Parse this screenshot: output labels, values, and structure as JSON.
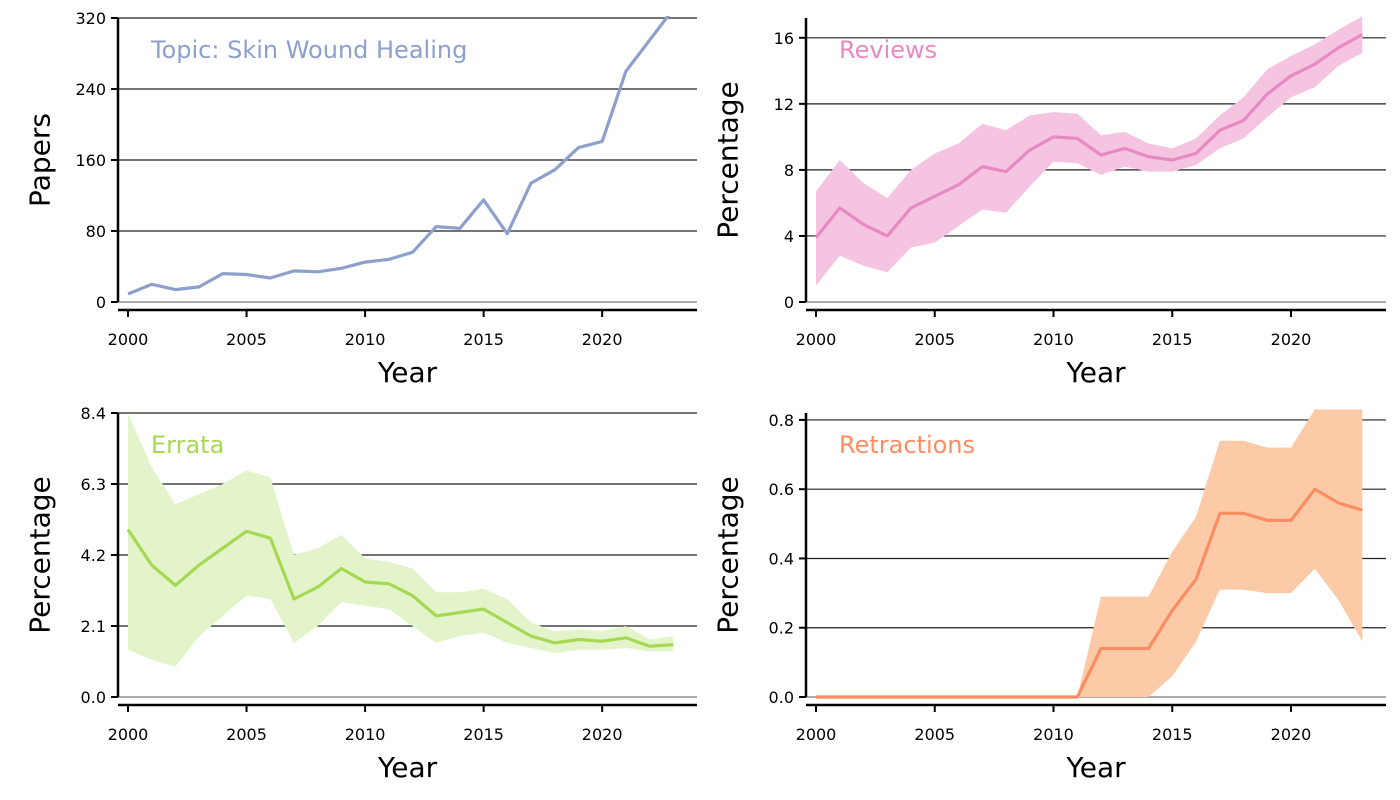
{
  "chart_data": [
    {
      "type": "line",
      "label": "Topic: Skin Wound Healing",
      "color": "#8da0cb",
      "xlabel": "Year",
      "ylabel": "Papers",
      "xlim": [
        2000,
        2024
      ],
      "ylim": [
        0,
        320
      ],
      "x_ticks": [
        2000,
        2005,
        2010,
        2015,
        2020
      ],
      "y_ticks": [
        "0",
        "80",
        "160",
        "240",
        "320"
      ],
      "grid": "horizontal",
      "series": [
        {
          "x": [
            2000,
            2001,
            2002,
            2003,
            2004,
            2005,
            2006,
            2007,
            2008,
            2009,
            2010,
            2011,
            2012,
            2013,
            2014,
            2015,
            2016,
            2017,
            2018,
            2019,
            2020,
            2021,
            2022,
            2023
          ],
          "y": [
            9,
            20,
            14,
            17,
            32,
            31,
            27,
            35,
            34,
            38,
            45,
            48,
            56,
            85,
            83,
            115,
            77,
            134,
            149,
            174,
            181,
            260,
            295,
            330
          ]
        }
      ]
    },
    {
      "type": "line",
      "label": "Reviews",
      "color": "#e78ac3",
      "band_color": "#f4c4e1",
      "xlabel": "Year",
      "ylabel": "Percentage",
      "xlim": [
        2000,
        2024
      ],
      "ylim": [
        0,
        17.2
      ],
      "x_ticks": [
        2000,
        2005,
        2010,
        2015,
        2020
      ],
      "y_ticks": [
        "0",
        "4",
        "8",
        "12",
        "16"
      ],
      "grid": "horizontal",
      "series": [
        {
          "x": [
            2000,
            2001,
            2002,
            2003,
            2004,
            2005,
            2006,
            2007,
            2008,
            2009,
            2010,
            2011,
            2012,
            2013,
            2014,
            2015,
            2016,
            2017,
            2018,
            2019,
            2020,
            2021,
            2022,
            2023
          ],
          "y": [
            3.9,
            5.7,
            4.7,
            4.0,
            5.7,
            6.4,
            7.1,
            8.2,
            7.9,
            9.2,
            10.0,
            9.9,
            8.9,
            9.3,
            8.8,
            8.6,
            9.0,
            10.4,
            11.0,
            12.6,
            13.7,
            14.4,
            15.4,
            16.2
          ],
          "lower": [
            1.0,
            2.8,
            2.2,
            1.8,
            3.3,
            3.6,
            4.6,
            5.6,
            5.4,
            7.0,
            8.5,
            8.4,
            7.7,
            8.2,
            7.9,
            7.9,
            8.3,
            9.3,
            9.9,
            11.2,
            12.4,
            13.0,
            14.3,
            15.1
          ],
          "upper": [
            6.7,
            8.6,
            7.2,
            6.3,
            8.0,
            9.0,
            9.6,
            10.8,
            10.4,
            11.3,
            11.5,
            11.4,
            10.1,
            10.3,
            9.6,
            9.3,
            9.9,
            11.3,
            12.4,
            14.1,
            14.9,
            15.6,
            16.5,
            17.3
          ]
        }
      ]
    },
    {
      "type": "line",
      "label": "Errata",
      "color": "#a6d854",
      "band_color": "#e4f4ca",
      "xlabel": "Year",
      "ylabel": "Percentage",
      "xlim": [
        2000,
        2024
      ],
      "ylim": [
        0,
        8.4
      ],
      "x_ticks": [
        2000,
        2005,
        2010,
        2015,
        2020
      ],
      "y_ticks": [
        "0.0",
        "2.1",
        "4.2",
        "6.3",
        "8.4"
      ],
      "grid": "horizontal",
      "series": [
        {
          "x": [
            2000,
            2001,
            2002,
            2003,
            2004,
            2005,
            2006,
            2007,
            2008,
            2009,
            2010,
            2011,
            2012,
            2013,
            2014,
            2015,
            2016,
            2017,
            2018,
            2019,
            2020,
            2021,
            2022,
            2023
          ],
          "y": [
            4.95,
            3.9,
            3.3,
            3.9,
            4.4,
            4.9,
            4.7,
            2.9,
            3.25,
            3.8,
            3.4,
            3.35,
            3.0,
            2.4,
            2.5,
            2.6,
            2.2,
            1.8,
            1.6,
            1.7,
            1.65,
            1.75,
            1.5,
            1.55
          ],
          "lower": [
            1.4,
            1.1,
            0.9,
            1.8,
            2.4,
            3.0,
            2.9,
            1.6,
            2.1,
            2.8,
            2.7,
            2.6,
            2.1,
            1.6,
            1.8,
            1.9,
            1.6,
            1.45,
            1.3,
            1.4,
            1.4,
            1.45,
            1.35,
            1.35
          ],
          "upper": [
            8.4,
            6.8,
            5.7,
            6.0,
            6.3,
            6.7,
            6.5,
            4.2,
            4.4,
            4.8,
            4.1,
            4.0,
            3.8,
            3.1,
            3.1,
            3.2,
            2.9,
            2.2,
            1.95,
            2.0,
            1.95,
            2.1,
            1.7,
            1.8
          ]
        }
      ]
    },
    {
      "type": "line",
      "label": "Retractions",
      "color": "#fc8d62",
      "band_color": "#fdcaa8",
      "xlabel": "Year",
      "ylabel": "Percentage",
      "xlim": [
        2000,
        2024
      ],
      "ylim": [
        0,
        0.82
      ],
      "x_ticks": [
        2000,
        2005,
        2010,
        2015,
        2020
      ],
      "y_ticks": [
        "0.0",
        "0.2",
        "0.4",
        "0.6",
        "0.8"
      ],
      "grid": "horizontal",
      "series": [
        {
          "x": [
            2000,
            2001,
            2002,
            2003,
            2004,
            2005,
            2006,
            2007,
            2008,
            2009,
            2010,
            2011,
            2012,
            2013,
            2014,
            2015,
            2016,
            2017,
            2018,
            2019,
            2020,
            2021,
            2022,
            2023
          ],
          "y": [
            0,
            0,
            0,
            0,
            0,
            0,
            0,
            0,
            0,
            0,
            0,
            0,
            0.14,
            0.14,
            0.14,
            0.25,
            0.34,
            0.53,
            0.53,
            0.51,
            0.51,
            0.6,
            0.56,
            0.54
          ],
          "lower": [
            0,
            0,
            0,
            0,
            0,
            0,
            0,
            0,
            0,
            0,
            0,
            0,
            0,
            0,
            0,
            0.06,
            0.16,
            0.31,
            0.31,
            0.3,
            0.3,
            0.37,
            0.28,
            0.16
          ],
          "upper": [
            0,
            0,
            0,
            0,
            0,
            0,
            0,
            0,
            0,
            0,
            0,
            0,
            0.29,
            0.29,
            0.29,
            0.42,
            0.52,
            0.74,
            0.74,
            0.72,
            0.72,
            0.83,
            0.83,
            0.83
          ]
        }
      ]
    }
  ]
}
